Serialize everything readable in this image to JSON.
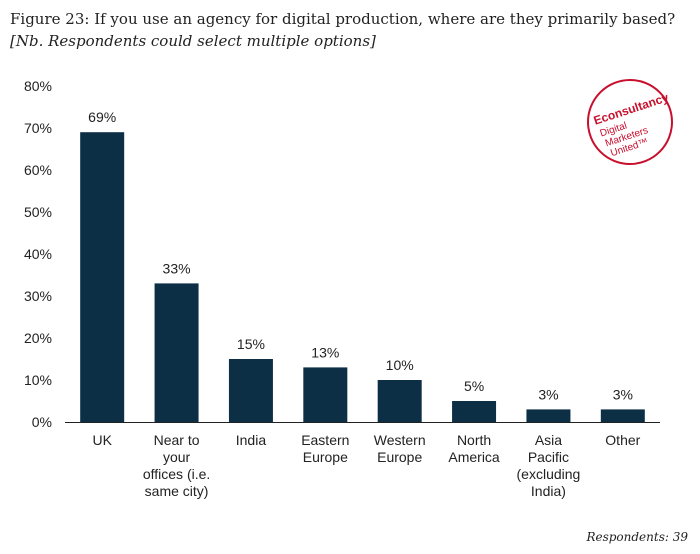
{
  "title": {
    "main": "Figure 23: If you use an agency for digital production, where are they primarily based?",
    "note": "[Nb. Respondents could select multiple options]"
  },
  "footer": "Respondents: 39",
  "logo": {
    "brand": "Econsultancy",
    "tagline": [
      "Digital",
      "Marketers",
      "United™"
    ],
    "color": "#c8102e"
  },
  "chart_data": {
    "type": "bar",
    "categories": [
      [
        "UK"
      ],
      [
        "Near to",
        "your",
        "offices (i.e.",
        "same city)"
      ],
      [
        "India"
      ],
      [
        "Eastern",
        "Europe"
      ],
      [
        "Western",
        "Europe"
      ],
      [
        "North",
        "America"
      ],
      [
        "Asia",
        "Pacific",
        "(excluding",
        "India)"
      ],
      [
        "Other"
      ]
    ],
    "values": [
      69,
      33,
      15,
      13,
      10,
      5,
      3,
      3
    ],
    "data_labels": [
      "69%",
      "33%",
      "15%",
      "13%",
      "10%",
      "5%",
      "3%",
      "3%"
    ],
    "ylim": [
      0,
      80
    ],
    "yticks": [
      "0%",
      "10%",
      "20%",
      "30%",
      "40%",
      "50%",
      "60%",
      "70%",
      "80%"
    ],
    "bar_color": "#0d2f45",
    "grid": false
  }
}
